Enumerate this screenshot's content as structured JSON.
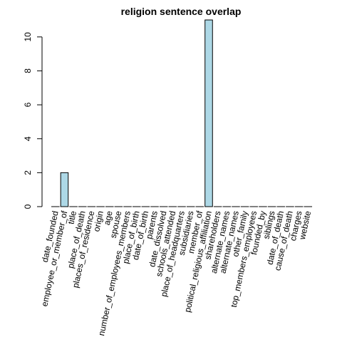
{
  "chart_data": {
    "type": "bar",
    "title": "religion sentence overlap",
    "xlabel": "",
    "ylabel": "",
    "ylim": [
      0,
      11
    ],
    "yticks": [
      0,
      2,
      4,
      6,
      8,
      10
    ],
    "grid": false,
    "bar_color": "#add8e6",
    "categories": [
      "date_founded",
      "employee_or_member_of",
      "title",
      "place_of_death",
      "places_of_residence",
      "origin",
      "age",
      "spouse",
      "number_of_employees_members",
      "place_of_birth",
      "date_of_birth",
      "parents",
      "date_dissolved",
      "schools_attended",
      "place_of_headquarters",
      "subsidiaries",
      "member_of",
      "political_religious_affiliation",
      "shareholders",
      "alternate_names",
      "alternate_names",
      "other_family",
      "top_members_employees",
      "founded_by",
      "siblings",
      "date_of_death",
      "cause_of_death",
      "charges",
      "website"
    ],
    "values": [
      0,
      2,
      0,
      0,
      0,
      0,
      0,
      0,
      0,
      0,
      0,
      0,
      0,
      0,
      0,
      0,
      0,
      11,
      0,
      0,
      0,
      0,
      0,
      0,
      0,
      0,
      0,
      0,
      0
    ]
  }
}
